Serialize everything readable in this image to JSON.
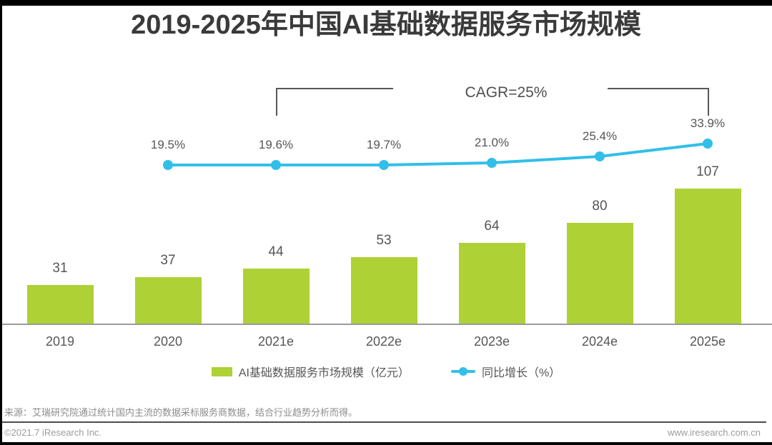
{
  "title": "2019-2025年中国AI基础数据服务市场规模",
  "cagr": {
    "label": "CAGR=25%"
  },
  "chart_data": {
    "type": "bar",
    "title": "2019-2025年中国AI基础数据服务市场规模",
    "categories": [
      "2019",
      "2020",
      "2021e",
      "2022e",
      "2023e",
      "2024e",
      "2025e"
    ],
    "series": [
      {
        "name": "AI基础数据服务市场规模（亿元）",
        "type": "bar",
        "color": "#aed136",
        "values": [
          31,
          37,
          44,
          53,
          64,
          80,
          107
        ]
      },
      {
        "name": "同比增长（%）",
        "type": "line",
        "color": "#31bfe9",
        "x": [
          "2020",
          "2021e",
          "2022e",
          "2023e",
          "2024e",
          "2025e"
        ],
        "values": [
          19.5,
          19.6,
          19.7,
          21.0,
          25.4,
          33.9
        ],
        "labels": [
          "19.5%",
          "19.6%",
          "19.7%",
          "21.0%",
          "25.4%",
          "33.9%"
        ]
      }
    ],
    "annotations": {
      "cagr_label": "CAGR=25%",
      "cagr_span": [
        "2021e",
        "2025e"
      ]
    },
    "xlabel": "",
    "ylabel": "",
    "legend_position": "bottom",
    "grid": false
  },
  "colors": {
    "bar": "#aed136",
    "line": "#31bfe9",
    "axis": "#9b9b9b",
    "bracket": "#575757",
    "text": "#565656"
  },
  "legend": {
    "items": [
      {
        "label": "AI基础数据服务市场规模（亿元）",
        "swatch": "bar"
      },
      {
        "label": "同比增长（%）",
        "swatch": "line-dot"
      }
    ]
  },
  "footer": {
    "source": "来源：艾瑞研究院通过统计国内主流的数据采标服务商数据，结合行业趋势分析而得。",
    "copyright": "©2021.7 iResearch Inc.",
    "website": "www.iresearch.com.cn"
  }
}
